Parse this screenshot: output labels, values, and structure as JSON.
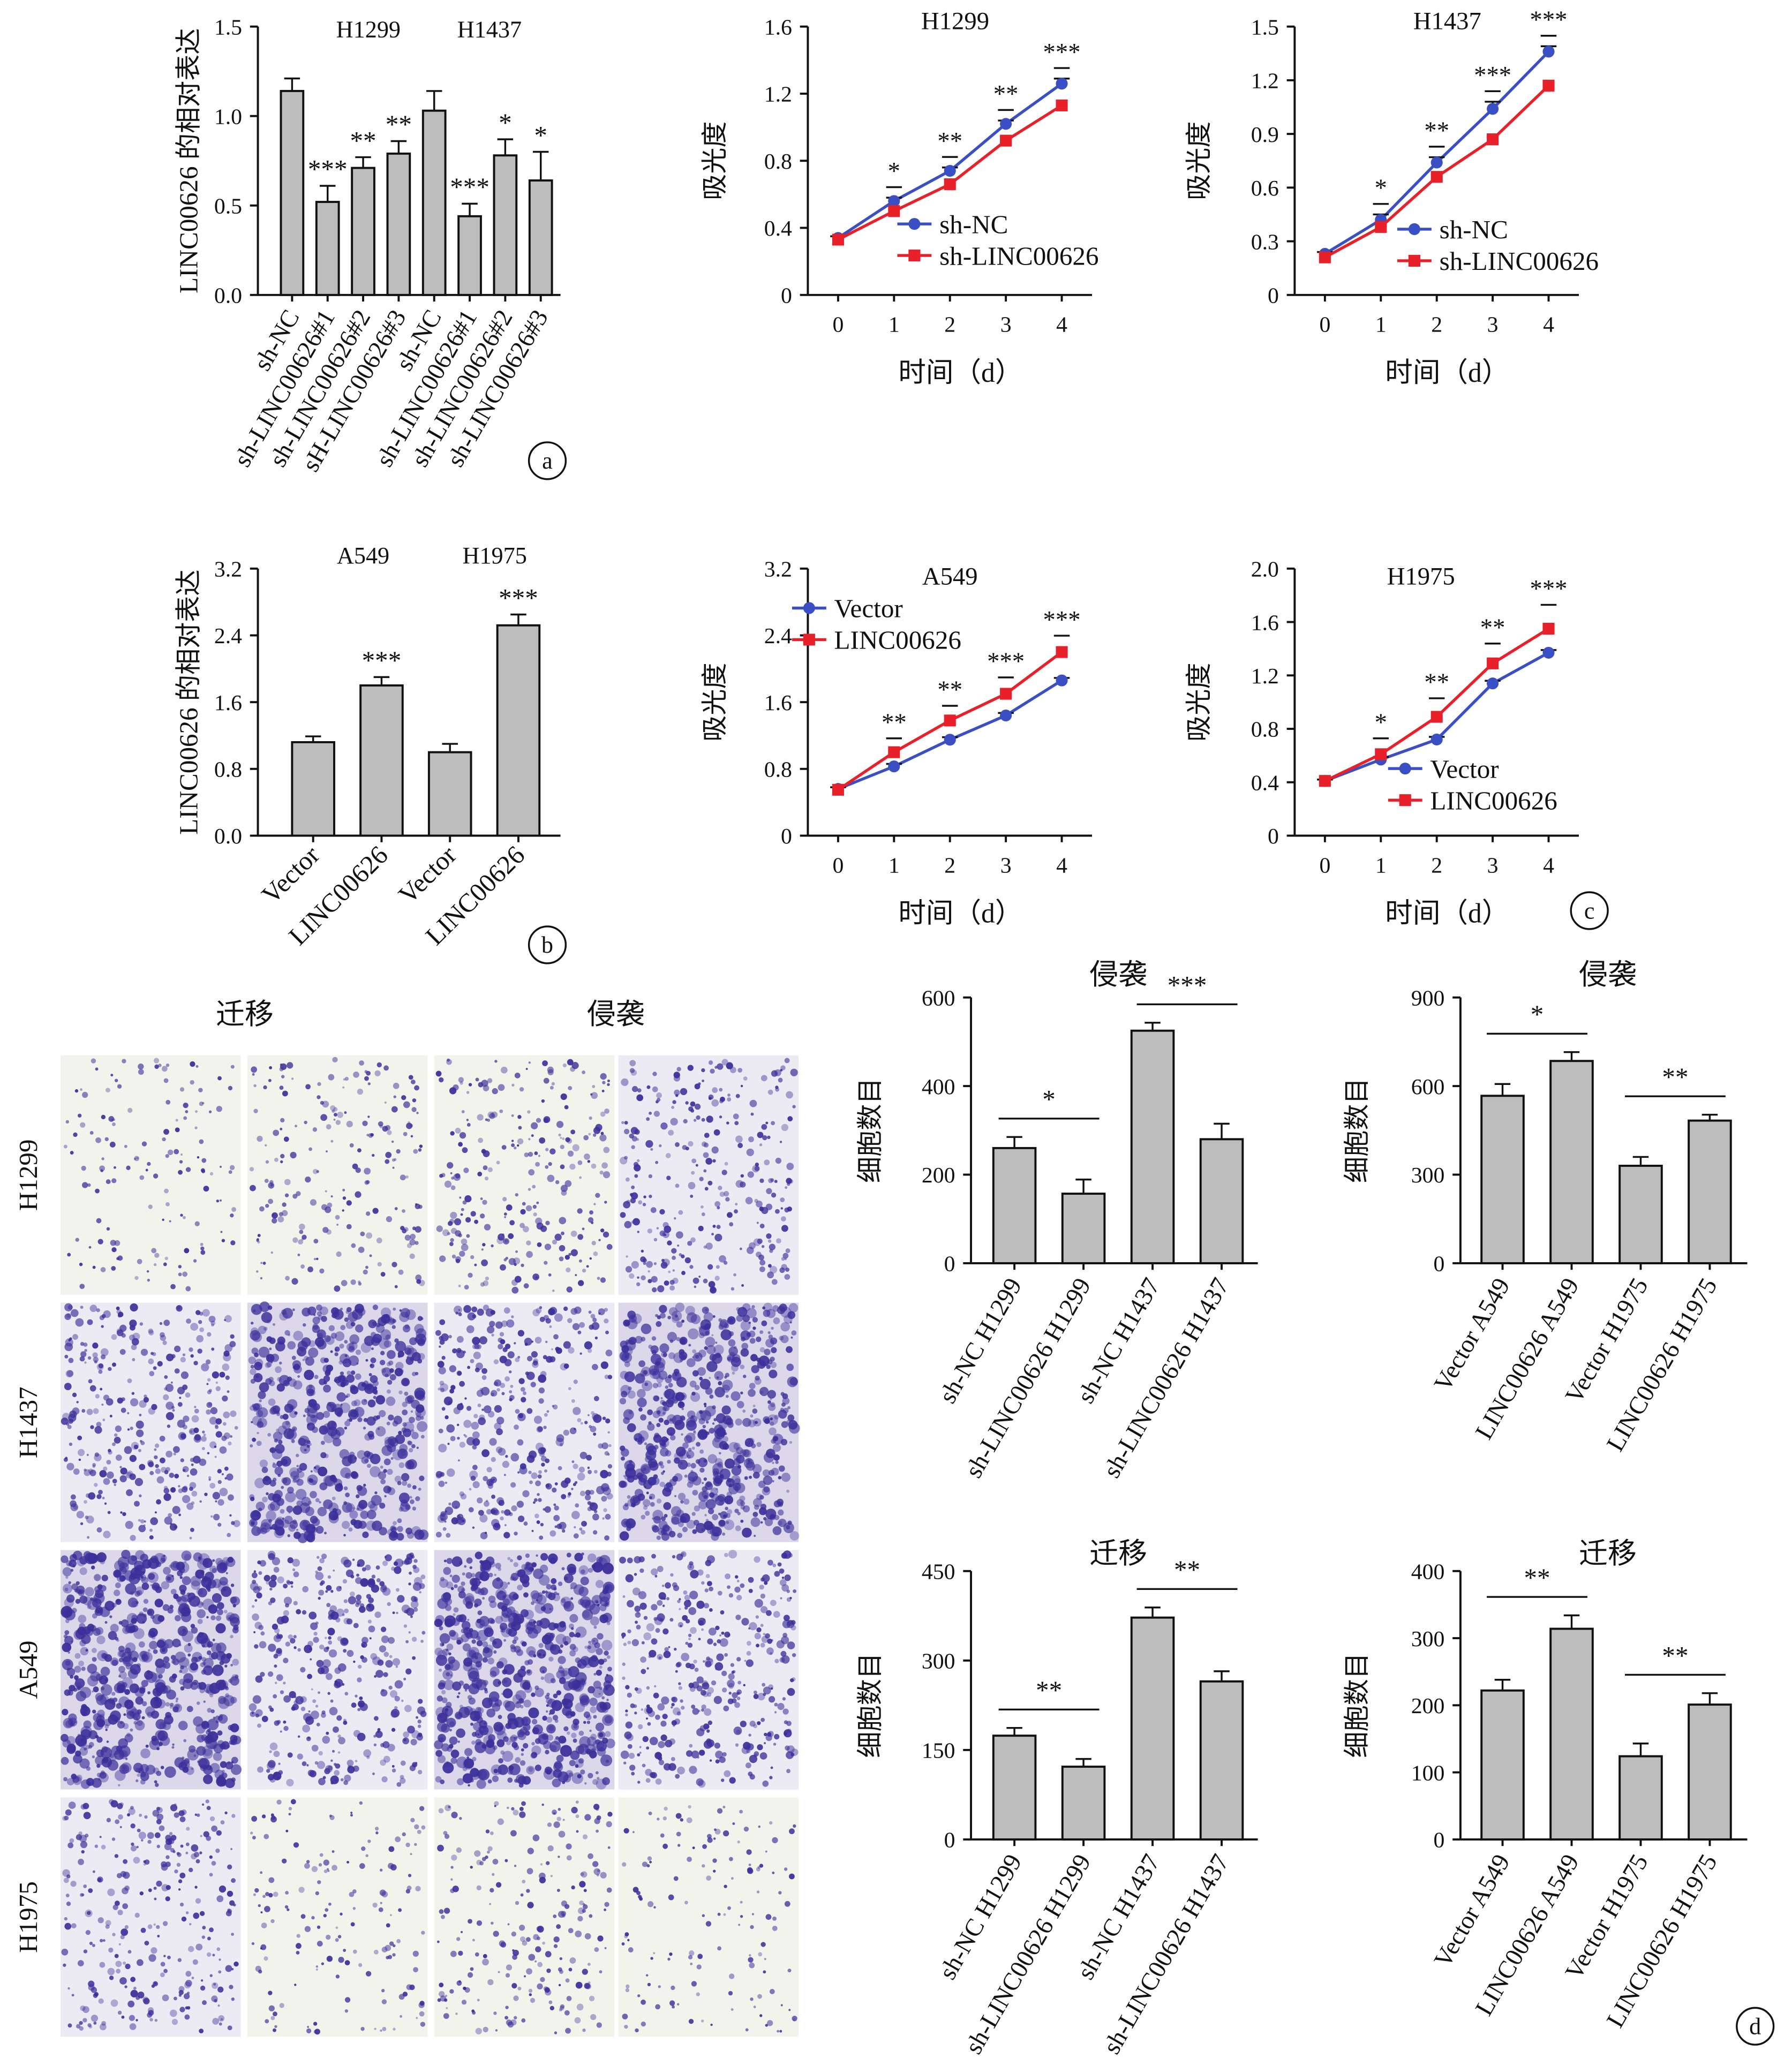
{
  "chart_data": [
    {
      "id": "a1",
      "type": "bar",
      "panel": "a",
      "ylabel": "LINC00626 的相对表达",
      "ylim": [
        0,
        1.5
      ],
      "yticks": [
        "0.0",
        "0.5",
        "1.0",
        "1.5"
      ],
      "categories": [
        "sh-NC",
        "sh-LINC00626#1",
        "sh-LINC00626#2",
        "sH-LINC00626#3",
        "sh-NC",
        "sh-LINC00626#1",
        "sh-LINC00626#2",
        "sh-LINC00626#3"
      ],
      "values": [
        1.14,
        0.52,
        0.71,
        0.79,
        1.03,
        0.44,
        0.78,
        0.64
      ],
      "errors": [
        0.07,
        0.09,
        0.06,
        0.07,
        0.11,
        0.07,
        0.09,
        0.16
      ],
      "significance": [
        "",
        "***",
        "**",
        "**",
        "",
        "***",
        "*",
        "*"
      ],
      "group_labels": [
        "H1299",
        "H1437"
      ]
    },
    {
      "id": "a2",
      "type": "line",
      "title": "H1299",
      "xlabel": "时间（d）",
      "ylabel": "吸光度",
      "x": [
        0,
        1,
        2,
        3,
        4
      ],
      "ylim": [
        0,
        1.6
      ],
      "yticks": [
        "0",
        "0.4",
        "0.8",
        "1.2",
        "1.6"
      ],
      "series": [
        {
          "name": "sh-NC",
          "color": "#3a4fc4",
          "marker": "circle",
          "values": [
            0.34,
            0.56,
            0.74,
            1.02,
            1.26
          ],
          "errors": [
            0.01,
            0.02,
            0.02,
            0.02,
            0.03
          ]
        },
        {
          "name": "sh-LINC00626",
          "color": "#e8202a",
          "marker": "square",
          "values": [
            0.33,
            0.5,
            0.66,
            0.92,
            1.13
          ],
          "errors": [
            0.01,
            0.02,
            0.02,
            0.02,
            0.02
          ]
        }
      ],
      "significance": [
        "",
        "*",
        "**",
        "**",
        "***"
      ]
    },
    {
      "id": "a3",
      "type": "line",
      "title": "H1437",
      "xlabel": "时间（d）",
      "ylabel": "吸光度",
      "x": [
        0,
        1,
        2,
        3,
        4
      ],
      "ylim": [
        0,
        1.5
      ],
      "yticks": [
        "0",
        "0.3",
        "0.6",
        "0.9",
        "1.2",
        "1.5"
      ],
      "series": [
        {
          "name": "sh-NC",
          "color": "#3a4fc4",
          "marker": "circle",
          "values": [
            0.23,
            0.42,
            0.74,
            1.04,
            1.36
          ],
          "errors": [
            0.01,
            0.03,
            0.03,
            0.04,
            0.03
          ]
        },
        {
          "name": "sh-LINC00626",
          "color": "#e8202a",
          "marker": "square",
          "values": [
            0.21,
            0.38,
            0.66,
            0.87,
            1.17
          ],
          "errors": [
            0.01,
            0.02,
            0.02,
            0.02,
            0.02
          ]
        }
      ],
      "significance": [
        "",
        "*",
        "**",
        "***",
        "***"
      ]
    },
    {
      "id": "b1",
      "type": "bar",
      "panel": "b",
      "ylabel": "LINC00626 的相对表达",
      "ylim": [
        0,
        3.2
      ],
      "yticks": [
        "0.0",
        "0.8",
        "1.6",
        "2.4",
        "3.2"
      ],
      "categories": [
        "Vector",
        "LINC00626",
        "Vector",
        "LINC00626"
      ],
      "values": [
        1.12,
        1.8,
        1.0,
        2.52
      ],
      "errors": [
        0.07,
        0.1,
        0.1,
        0.13
      ],
      "significance": [
        "",
        "***",
        "",
        "***"
      ],
      "group_labels": [
        "A549",
        "H1975"
      ]
    },
    {
      "id": "c1",
      "type": "line",
      "title": "A549",
      "xlabel": "时间（d）",
      "ylabel": "吸光度",
      "x": [
        0,
        1,
        2,
        3,
        4
      ],
      "ylim": [
        0,
        3.2
      ],
      "yticks": [
        "0",
        "0.8",
        "1.6",
        "2.4",
        "3.2"
      ],
      "series": [
        {
          "name": "Vector",
          "color": "#3a4fc4",
          "marker": "circle",
          "values": [
            0.56,
            0.83,
            1.15,
            1.44,
            1.86
          ],
          "errors": [
            0.02,
            0.03,
            0.03,
            0.03,
            0.03
          ]
        },
        {
          "name": "LINC00626",
          "color": "#e8202a",
          "marker": "square",
          "values": [
            0.55,
            1.0,
            1.38,
            1.7,
            2.2
          ],
          "errors": [
            0.02,
            0.04,
            0.05,
            0.07,
            0.07
          ]
        }
      ],
      "significance": [
        "",
        "**",
        "**",
        "***",
        "***"
      ]
    },
    {
      "id": "c2",
      "type": "line",
      "panel": "c",
      "title": "H1975",
      "xlabel": "时间（d）",
      "ylabel": "吸光度",
      "x": [
        0,
        1,
        2,
        3,
        4
      ],
      "ylim": [
        0,
        2.0
      ],
      "yticks": [
        "0",
        "0.4",
        "0.8",
        "1.2",
        "1.6",
        "2.0"
      ],
      "series": [
        {
          "name": "Vector",
          "color": "#3a4fc4",
          "marker": "circle",
          "values": [
            0.41,
            0.57,
            0.72,
            1.14,
            1.37
          ],
          "errors": [
            0.01,
            0.02,
            0.02,
            0.02,
            0.02
          ]
        },
        {
          "name": "LINC00626",
          "color": "#e8202a",
          "marker": "square",
          "values": [
            0.41,
            0.61,
            0.89,
            1.29,
            1.55
          ],
          "errors": [
            0.01,
            0.04,
            0.06,
            0.07,
            0.1
          ]
        }
      ],
      "significance": [
        "",
        "*",
        "**",
        "**",
        "***"
      ]
    },
    {
      "id": "d1",
      "type": "bar",
      "title": "侵袭",
      "ylabel": "细胞数目",
      "ylim": [
        0,
        600
      ],
      "yticks": [
        "0",
        "200",
        "400",
        "600"
      ],
      "categories": [
        "sh-NC H1299",
        "sh-LINC00626 H1299",
        "sh-NC H1437",
        "sh-LINC00626 H1437"
      ],
      "values": [
        260,
        157,
        525,
        280
      ],
      "errors": [
        25,
        32,
        18,
        35
      ],
      "comparisons": [
        {
          "from": 0,
          "to": 1,
          "label": "*"
        },
        {
          "from": 2,
          "to": 3,
          "label": "***"
        }
      ]
    },
    {
      "id": "d2",
      "type": "bar",
      "title": "侵袭",
      "ylabel": "细胞数目",
      "ylim": [
        0,
        900
      ],
      "yticks": [
        "0",
        "300",
        "600",
        "900"
      ],
      "categories": [
        "Vector A549",
        "LINC00626 A549",
        "Vector H1975",
        "LINC00626 H1975"
      ],
      "values": [
        567,
        685,
        330,
        483
      ],
      "errors": [
        40,
        30,
        30,
        20
      ],
      "comparisons": [
        {
          "from": 0,
          "to": 1,
          "label": "*"
        },
        {
          "from": 2,
          "to": 3,
          "label": "**"
        }
      ]
    },
    {
      "id": "d3",
      "type": "bar",
      "title": "迁移",
      "ylabel": "细胞数目",
      "ylim": [
        0,
        450
      ],
      "yticks": [
        "0",
        "150",
        "300",
        "450"
      ],
      "categories": [
        "sh-NC H1299",
        "sh-LINC00626 H1299",
        "sh-NC H1437",
        "sh-LINC00626 H1437"
      ],
      "values": [
        174,
        122,
        372,
        265
      ],
      "errors": [
        13,
        13,
        17,
        17
      ],
      "comparisons": [
        {
          "from": 0,
          "to": 1,
          "label": "**"
        },
        {
          "from": 2,
          "to": 3,
          "label": "**"
        }
      ]
    },
    {
      "id": "d4",
      "type": "bar",
      "panel": "d",
      "title": "迁移",
      "ylabel": "细胞数目",
      "ylim": [
        0,
        400
      ],
      "yticks": [
        "0",
        "100",
        "200",
        "300",
        "400"
      ],
      "categories": [
        "Vector A549",
        "LINC00626 A549",
        "Vector H1975",
        "LINC00626 H1975"
      ],
      "values": [
        222,
        314,
        124,
        201
      ],
      "errors": [
        16,
        20,
        19,
        17
      ],
      "comparisons": [
        {
          "from": 0,
          "to": 1,
          "label": "**"
        },
        {
          "from": 2,
          "to": 3,
          "label": "**"
        }
      ]
    }
  ],
  "micrographs": {
    "column_headers": [
      "迁移",
      "侵袭"
    ],
    "row_labels": [
      "H1299",
      "H1437",
      "A549",
      "H1975"
    ],
    "stain_color": "#3b2f9a",
    "density": [
      [
        0.12,
        0.22,
        0.3,
        0.35
      ],
      [
        0.45,
        0.85,
        0.5,
        0.85
      ],
      [
        0.95,
        0.5,
        0.95,
        0.5
      ],
      [
        0.35,
        0.15,
        0.25,
        0.12
      ]
    ]
  }
}
